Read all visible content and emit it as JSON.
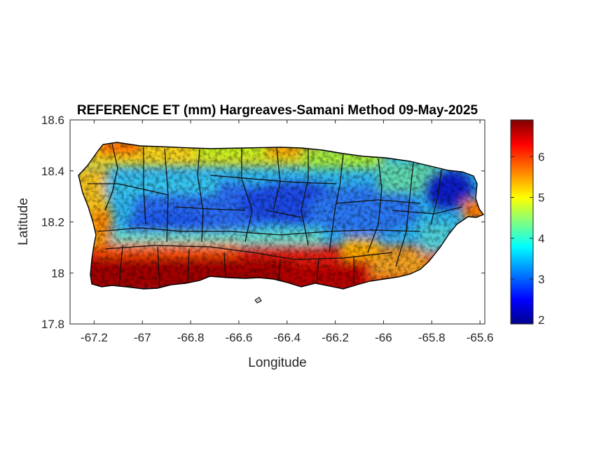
{
  "chart_data": {
    "type": "heatmap",
    "title": "REFERENCE ET (mm) Hargreaves-Samani Method  09-May-2025",
    "xlabel": "Longitude",
    "ylabel": "Latitude",
    "xlim": [
      -67.3,
      -65.58
    ],
    "ylim": [
      17.8,
      18.6
    ],
    "x_ticks": [
      -67.2,
      -67,
      -66.8,
      -66.6,
      -66.4,
      -66.2,
      -66,
      -65.8,
      -65.6
    ],
    "x_tick_labels": [
      "-67.2",
      "-67",
      "-66.8",
      "-66.6",
      "-66.4",
      "-66.2",
      "-66",
      "-65.8",
      "-65.6"
    ],
    "y_ticks": [
      17.8,
      18,
      18.2,
      18.4,
      18.6
    ],
    "y_tick_labels": [
      "17.8",
      "18",
      "18.2",
      "18.4",
      "18.6"
    ],
    "colorbar": {
      "colormap": "jet",
      "range": [
        1.9,
        6.9
      ],
      "ticks": [
        2,
        3,
        4,
        5,
        6
      ],
      "tick_labels": [
        "2",
        "3",
        "4",
        "5",
        "6"
      ],
      "colors": [
        "#00008f",
        "#0000ff",
        "#00ffff",
        "#ffff00",
        "#ff0000",
        "#800000"
      ]
    },
    "grid": false,
    "region": "Puerto Rico",
    "field_summary": [
      {
        "area": "south coast",
        "value_range": [
          6,
          6.9
        ]
      },
      {
        "area": "north coast",
        "value_range": [
          4.5,
          6
        ]
      },
      {
        "area": "central mountains",
        "value_range": [
          2.5,
          3.5
        ]
      },
      {
        "area": "northeast",
        "value_range": [
          2,
          3
        ]
      },
      {
        "area": "east coast",
        "value_range": [
          5,
          6
        ]
      }
    ]
  }
}
